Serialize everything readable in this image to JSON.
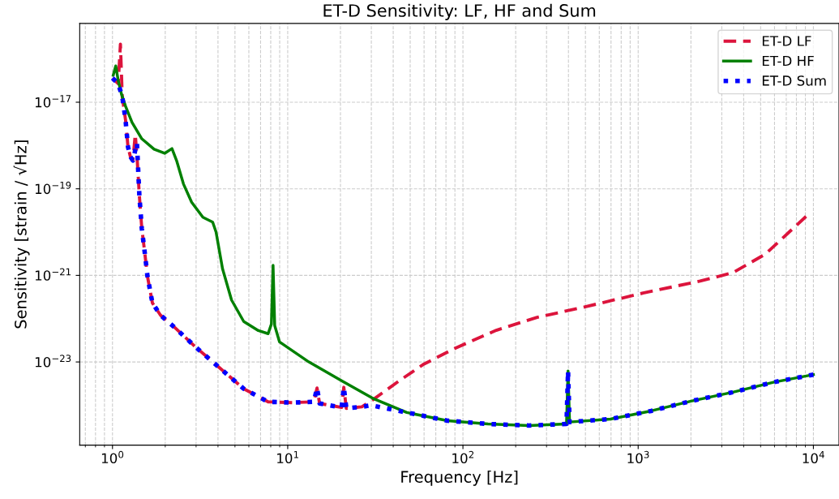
{
  "chart_data": {
    "type": "line",
    "title": "ET-D Sensitivity: LF, HF and Sum",
    "xlabel": "Frequency [Hz]",
    "ylabel": "Sensitivity [strain / √Hz]",
    "log": "xy",
    "xlim": [
      0.65,
      14000
    ],
    "ylim": [
      1.2e-25,
      6.6e-16
    ],
    "xticks": [
      {
        "value": 1,
        "label": "10$^{0}$"
      },
      {
        "value": 10,
        "label": "10$^{1}$"
      },
      {
        "value": 100,
        "label": "10$^{2}$"
      },
      {
        "value": 1000,
        "label": "10$^{3}$"
      },
      {
        "value": 10000,
        "label": "10$^{4}$"
      }
    ],
    "yticks": [
      {
        "value": 1e-23,
        "label": "10$^{−23}$"
      },
      {
        "value": 1e-21,
        "label": "10$^{−21}$"
      },
      {
        "value": 1e-19,
        "label": "10$^{−19}$"
      },
      {
        "value": 1e-17,
        "label": "10$^{−17}$"
      }
    ],
    "grid": true,
    "legend": "top right",
    "series": [
      {
        "name": "ET-D LF",
        "color": "#dc143c",
        "line_style": "dashed",
        "x": [
          1.0,
          1.078,
          1.11,
          1.137,
          1.187,
          1.226,
          1.266,
          1.307,
          1.349,
          1.379,
          1.424,
          1.47,
          1.518,
          1.585,
          1.69,
          1.88,
          2.26,
          2.95,
          4.07,
          5.61,
          7.73,
          10.7,
          14.1,
          14.7,
          15.2,
          20.3,
          20.9,
          21.6,
          26.5,
          31.1,
          43,
          59.2,
          90.8,
          155,
          265,
          504,
          1067,
          2256,
          3467,
          5321,
          9080
        ],
        "values": [
          3.6e-17,
          2.7e-17,
          2.2e-16,
          1.35e-17,
          3.9e-18,
          9.3e-19,
          5.5e-19,
          4.5e-19,
          1.8e-18,
          6e-19,
          6.9e-20,
          1.2e-20,
          4.2e-21,
          9.3e-22,
          2.3e-22,
          1.2e-22,
          6.3e-23,
          2.3e-23,
          7.4e-24,
          2.4e-24,
          1.2e-24,
          1.15e-24,
          1.2e-24,
          2.5e-24,
          1.1e-24,
          8.9e-25,
          2.6e-24,
          8.5e-25,
          9.2e-25,
          1.4e-24,
          3.6e-24,
          8.7e-24,
          2.1e-23,
          5.4e-23,
          1.07e-22,
          1.9e-22,
          3.9e-22,
          7.4e-22,
          1.15e-21,
          3.1e-21,
          2.3e-20
        ]
      },
      {
        "name": "ET-D HF",
        "color": "#008000",
        "line_style": "solid",
        "x": [
          1.01,
          1.044,
          1.078,
          1.125,
          1.187,
          1.293,
          1.47,
          1.727,
          1.985,
          2.185,
          2.33,
          2.54,
          2.83,
          3.28,
          3.73,
          3.9,
          4.25,
          4.78,
          5.61,
          6.8,
          7.73,
          8.07,
          8.25,
          8.43,
          8.98,
          13.2,
          20.3,
          31.1,
          47.8,
          81.6,
          139,
          238,
          390,
          398,
          406,
          695,
          1186,
          2028,
          3467,
          5916,
          10000
        ],
        "values": [
          4.2e-17,
          6.9e-17,
          3.2e-17,
          1.55e-17,
          8.1e-18,
          3.4e-18,
          1.43e-18,
          8.2e-19,
          6.6e-19,
          8.5e-19,
          4.3e-19,
          1.3e-19,
          4.9e-20,
          2.2e-20,
          1.7e-20,
          1e-20,
          1.4e-21,
          2.7e-22,
          8.6e-23,
          5.3e-23,
          4.5e-23,
          7.5e-23,
          1.7e-21,
          6.9e-23,
          2.9e-23,
          1e-23,
          3.7e-24,
          1.4e-24,
          6.8e-25,
          4.4e-25,
          3.7e-25,
          3.4e-25,
          3.7e-25,
          6.2e-24,
          4.1e-25,
          4.8e-25,
          7.4e-25,
          1.26e-24,
          2e-24,
          3.4e-24,
          5.1e-24
        ]
      },
      {
        "name": "ET-D Sum",
        "color": "#0000ff",
        "line_style": "dotted",
        "x": [
          1.0,
          1.078,
          1.137,
          1.187,
          1.226,
          1.266,
          1.307,
          1.379,
          1.424,
          1.47,
          1.518,
          1.585,
          1.69,
          1.88,
          2.26,
          2.95,
          4.07,
          5.61,
          7.73,
          10.7,
          14.1,
          14.7,
          15.2,
          20.3,
          20.9,
          21.6,
          26.5,
          29.8,
          47.8,
          81.6,
          139,
          238,
          390,
          398,
          406,
          695,
          1186,
          2028,
          3467,
          5916,
          10000
        ],
        "values": [
          3.6e-17,
          2.7e-17,
          1.35e-17,
          3.9e-18,
          9.3e-19,
          5.5e-19,
          4.5e-19,
          1.15e-18,
          6.9e-20,
          1.2e-20,
          4.2e-21,
          9.3e-22,
          2.3e-22,
          1.2e-22,
          6.3e-23,
          2.3e-23,
          7.4e-24,
          2.4e-24,
          1.2e-24,
          1.15e-24,
          1.2e-24,
          2.5e-24,
          1.1e-24,
          8.9e-25,
          2.6e-24,
          8.5e-25,
          9.2e-25,
          1e-24,
          6.8e-25,
          4.4e-25,
          3.7e-25,
          3.4e-25,
          3.7e-25,
          6.2e-24,
          4.1e-25,
          4.8e-25,
          7.4e-25,
          1.26e-24,
          2e-24,
          3.4e-24,
          5.1e-24
        ]
      }
    ]
  }
}
